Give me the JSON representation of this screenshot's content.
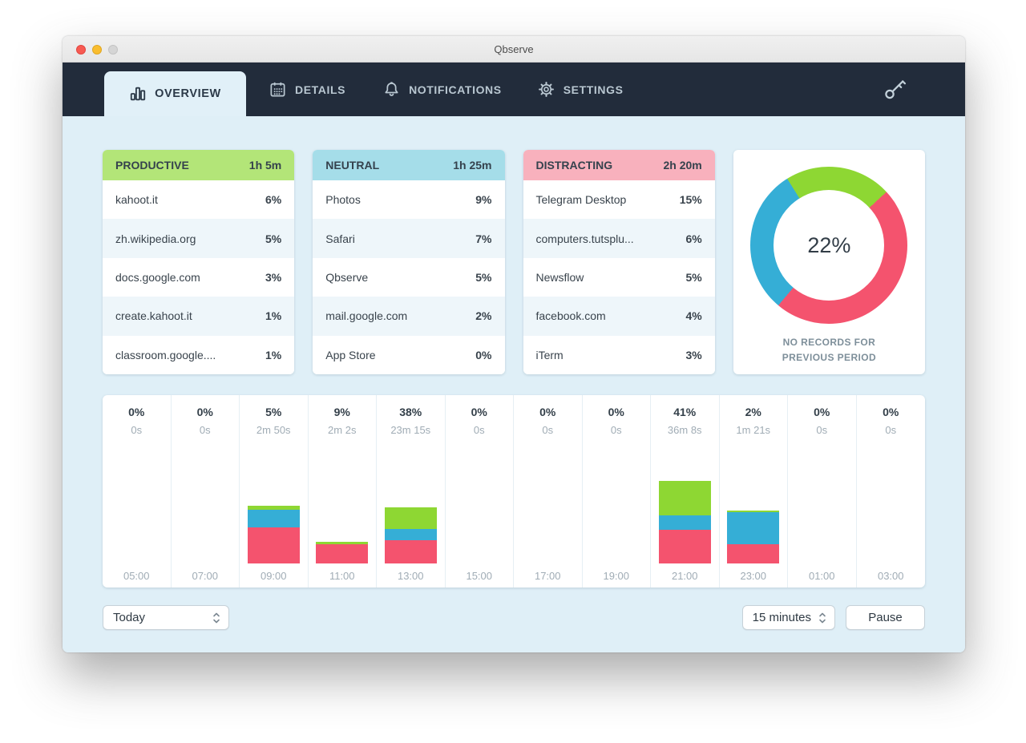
{
  "window": {
    "title": "Qbserve"
  },
  "nav": {
    "tabs": [
      {
        "label": "OVERVIEW",
        "active": true
      },
      {
        "label": "DETAILS",
        "active": false
      },
      {
        "label": "NOTIFICATIONS",
        "active": false
      },
      {
        "label": "SETTINGS",
        "active": false
      }
    ]
  },
  "colors": {
    "productive": "#8ed733",
    "neutral": "#35aed6",
    "distracting": "#f4536e",
    "productive_header": "#b3e578",
    "neutral_header": "#a5dde9",
    "distracting_header": "#f8b1bd"
  },
  "categories": [
    {
      "name": "PRODUCTIVE",
      "duration": "1h 5m",
      "header_color": "#b3e578",
      "rows": [
        {
          "label": "kahoot.it",
          "pct": "6%"
        },
        {
          "label": "zh.wikipedia.org",
          "pct": "5%"
        },
        {
          "label": "docs.google.com",
          "pct": "3%"
        },
        {
          "label": "create.kahoot.it",
          "pct": "1%"
        },
        {
          "label": "classroom.google....",
          "pct": "1%"
        }
      ]
    },
    {
      "name": "NEUTRAL",
      "duration": "1h 25m",
      "header_color": "#a5dde9",
      "rows": [
        {
          "label": "Photos",
          "pct": "9%"
        },
        {
          "label": "Safari",
          "pct": "7%"
        },
        {
          "label": "Qbserve",
          "pct": "5%"
        },
        {
          "label": "mail.google.com",
          "pct": "2%"
        },
        {
          "label": "App Store",
          "pct": "0%"
        }
      ]
    },
    {
      "name": "DISTRACTING",
      "duration": "2h 20m",
      "header_color": "#f8b1bd",
      "rows": [
        {
          "label": "Telegram Desktop",
          "pct": "15%"
        },
        {
          "label": "computers.tutsplu...",
          "pct": "6%"
        },
        {
          "label": "Newsflow",
          "pct": "5%"
        },
        {
          "label": "facebook.com",
          "pct": "4%"
        },
        {
          "label": "iTerm",
          "pct": "3%"
        }
      ]
    }
  ],
  "chart_data": [
    {
      "type": "bar",
      "stacked": true,
      "title": "Productivity by 2-hour interval",
      "categories": [
        "05:00",
        "07:00",
        "09:00",
        "11:00",
        "13:00",
        "15:00",
        "17:00",
        "19:00",
        "21:00",
        "23:00",
        "01:00",
        "03:00"
      ],
      "segment_order_bottom_to_top": [
        "distracting",
        "neutral",
        "productive"
      ],
      "bar_height_unit": "px",
      "columns": [
        {
          "time": "05:00",
          "pct": "0%",
          "duration": "0s",
          "segments": {
            "productive": 0,
            "neutral": 0,
            "distracting": 0
          }
        },
        {
          "time": "07:00",
          "pct": "0%",
          "duration": "0s",
          "segments": {
            "productive": 0,
            "neutral": 0,
            "distracting": 0
          }
        },
        {
          "time": "09:00",
          "pct": "5%",
          "duration": "2m 50s",
          "segments": {
            "productive": 5,
            "neutral": 22,
            "distracting": 45
          }
        },
        {
          "time": "11:00",
          "pct": "9%",
          "duration": "2m 2s",
          "segments": {
            "productive": 3,
            "neutral": 0,
            "distracting": 24
          }
        },
        {
          "time": "13:00",
          "pct": "38%",
          "duration": "23m 15s",
          "segments": {
            "productive": 27,
            "neutral": 14,
            "distracting": 29
          }
        },
        {
          "time": "15:00",
          "pct": "0%",
          "duration": "0s",
          "segments": {
            "productive": 0,
            "neutral": 0,
            "distracting": 0
          }
        },
        {
          "time": "17:00",
          "pct": "0%",
          "duration": "0s",
          "segments": {
            "productive": 0,
            "neutral": 0,
            "distracting": 0
          }
        },
        {
          "time": "19:00",
          "pct": "0%",
          "duration": "0s",
          "segments": {
            "productive": 0,
            "neutral": 0,
            "distracting": 0
          }
        },
        {
          "time": "21:00",
          "pct": "41%",
          "duration": "36m 8s",
          "segments": {
            "productive": 43,
            "neutral": 18,
            "distracting": 42
          }
        },
        {
          "time": "23:00",
          "pct": "2%",
          "duration": "1m 21s",
          "segments": {
            "productive": 2,
            "neutral": 40,
            "distracting": 24
          }
        },
        {
          "time": "01:00",
          "pct": "0%",
          "duration": "0s",
          "segments": {
            "productive": 0,
            "neutral": 0,
            "distracting": 0
          }
        },
        {
          "time": "03:00",
          "pct": "0%",
          "duration": "0s",
          "segments": {
            "productive": 0,
            "neutral": 0,
            "distracting": 0
          }
        }
      ]
    },
    {
      "type": "donut",
      "center_label": "22%",
      "caption": "NO RECORDS FOR PREVIOUS PERIOD",
      "start_angle_deg": -32,
      "slices": [
        {
          "name": "productive",
          "value_pct": 22,
          "color": "#8ed733"
        },
        {
          "name": "distracting",
          "value_pct": 48,
          "color": "#f4536e"
        },
        {
          "name": "neutral",
          "value_pct": 30,
          "color": "#35aed6"
        }
      ]
    }
  ],
  "footer": {
    "period_select": "Today",
    "interval_select": "15 minutes",
    "pause_button": "Pause"
  }
}
